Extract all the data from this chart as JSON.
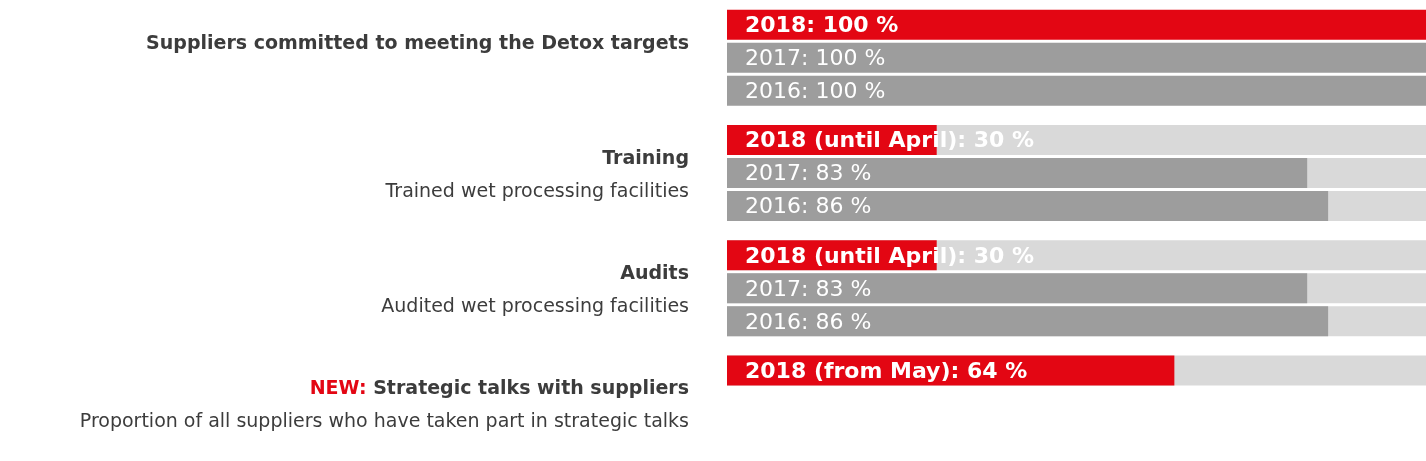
{
  "chart_data": {
    "type": "bar",
    "orientation": "horizontal",
    "categories": [
      "Suppliers committed to meeting the Detox targets",
      "Training\nTrained wet processing facilities",
      "Audits\nAudited wet processing facilities",
      "NEW: Strategic talks with suppliers\nProportion of all suppliers who have taken part in strategic talks"
    ],
    "series": [
      {
        "color": "#e30613",
        "values": [
          100,
          30,
          30,
          64
        ],
        "value_labels": [
          "2018: 100 %",
          "2018 (until April): 30 %",
          "2018 (until April): 30 %",
          "2018 (from May): 64 %"
        ]
      },
      {
        "color": "#9d9d9d",
        "values": [
          100,
          83,
          83,
          null
        ],
        "value_labels": [
          "2017: 100 %",
          "2017: 83 %",
          "2017: 83 %",
          null
        ]
      },
      {
        "color": "#9d9d9d",
        "values": [
          100,
          86,
          86,
          null
        ],
        "value_labels": [
          "2016: 100 %",
          "2016: 86 %",
          "2016: 86 %",
          null
        ]
      }
    ],
    "xlim": [
      0,
      100
    ]
  }
}
